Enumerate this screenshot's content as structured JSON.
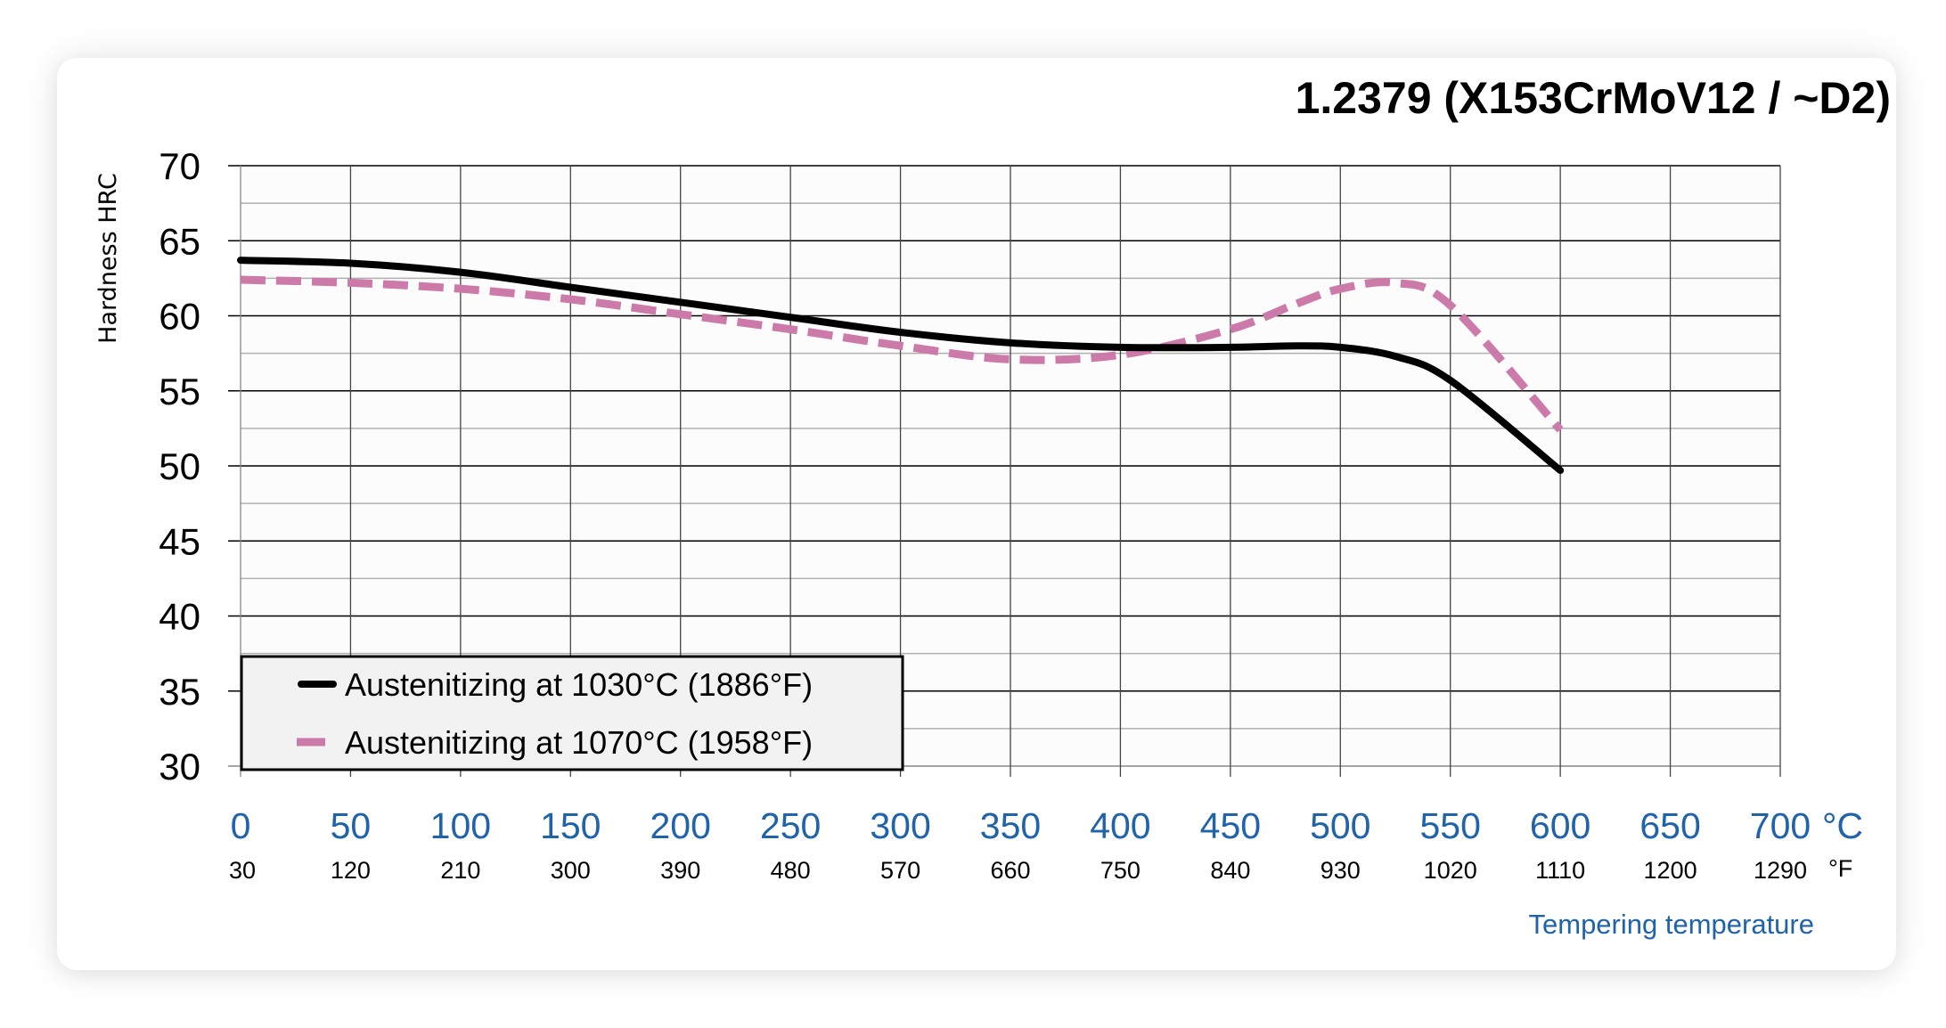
{
  "title": "1.2379 (X153CrMoV12 / ~D2)",
  "colors": {
    "series_1030": "#000000",
    "series_1070": "#cc7aa9",
    "axis_blue": "#1f63aa",
    "legend_bg": "#f2f2f2",
    "plot_bg": "#fcfcfc",
    "major_grid": "#000000",
    "minor_grid": "#b0b0b0"
  },
  "chart_data": {
    "type": "line",
    "title": "1.2379 (X153CrMoV12 / ~D2)",
    "xlabel": "Tempering temperature",
    "ylabel": "Hardness HRC",
    "x_unit_primary": "°C",
    "x_unit_secondary": "°F",
    "xlim": [
      0,
      700
    ],
    "ylim": [
      30,
      70
    ],
    "x_ticks": [
      0,
      50,
      100,
      150,
      200,
      250,
      300,
      350,
      400,
      450,
      500,
      550,
      600,
      650,
      700
    ],
    "x_ticks_f": [
      "30",
      "120",
      "210",
      "300",
      "390",
      "480",
      "570",
      "660",
      "750",
      "840",
      "930",
      "1020",
      "1110",
      "1200",
      "1290"
    ],
    "y_ticks": [
      70,
      65,
      60,
      55,
      50,
      45,
      40,
      35,
      30
    ],
    "grid": true,
    "legend_position": "lower-left",
    "x": [
      0,
      50,
      100,
      150,
      200,
      250,
      300,
      350,
      400,
      450,
      480,
      500,
      525,
      550,
      600
    ],
    "series": [
      {
        "name": "Austenitizing at 1030°C (1886°F)",
        "style": "solid",
        "color": "#000000",
        "values": [
          63.7,
          63.5,
          62.9,
          61.9,
          60.9,
          59.9,
          58.9,
          58.2,
          57.9,
          57.9,
          58.0,
          57.9,
          57.3,
          55.7,
          49.7
        ]
      },
      {
        "name": "Austenitizing at 1070°C (1958°F)",
        "style": "dashed",
        "color": "#cc7aa9",
        "values": [
          62.4,
          62.2,
          61.8,
          61.1,
          60.1,
          59.1,
          58.0,
          57.1,
          57.4,
          59.1,
          60.8,
          61.8,
          62.2,
          60.7,
          52.4
        ]
      }
    ]
  },
  "legend": {
    "items": [
      {
        "label": "Austenitizing at 1030°C (1886°F)"
      },
      {
        "label": "Austenitizing at 1070°C (1958°F)"
      }
    ]
  },
  "axis": {
    "c_unit": "°C",
    "f_unit": "°F",
    "xlabel": "Tempering temperature",
    "ylabel": "Hardness HRC"
  }
}
